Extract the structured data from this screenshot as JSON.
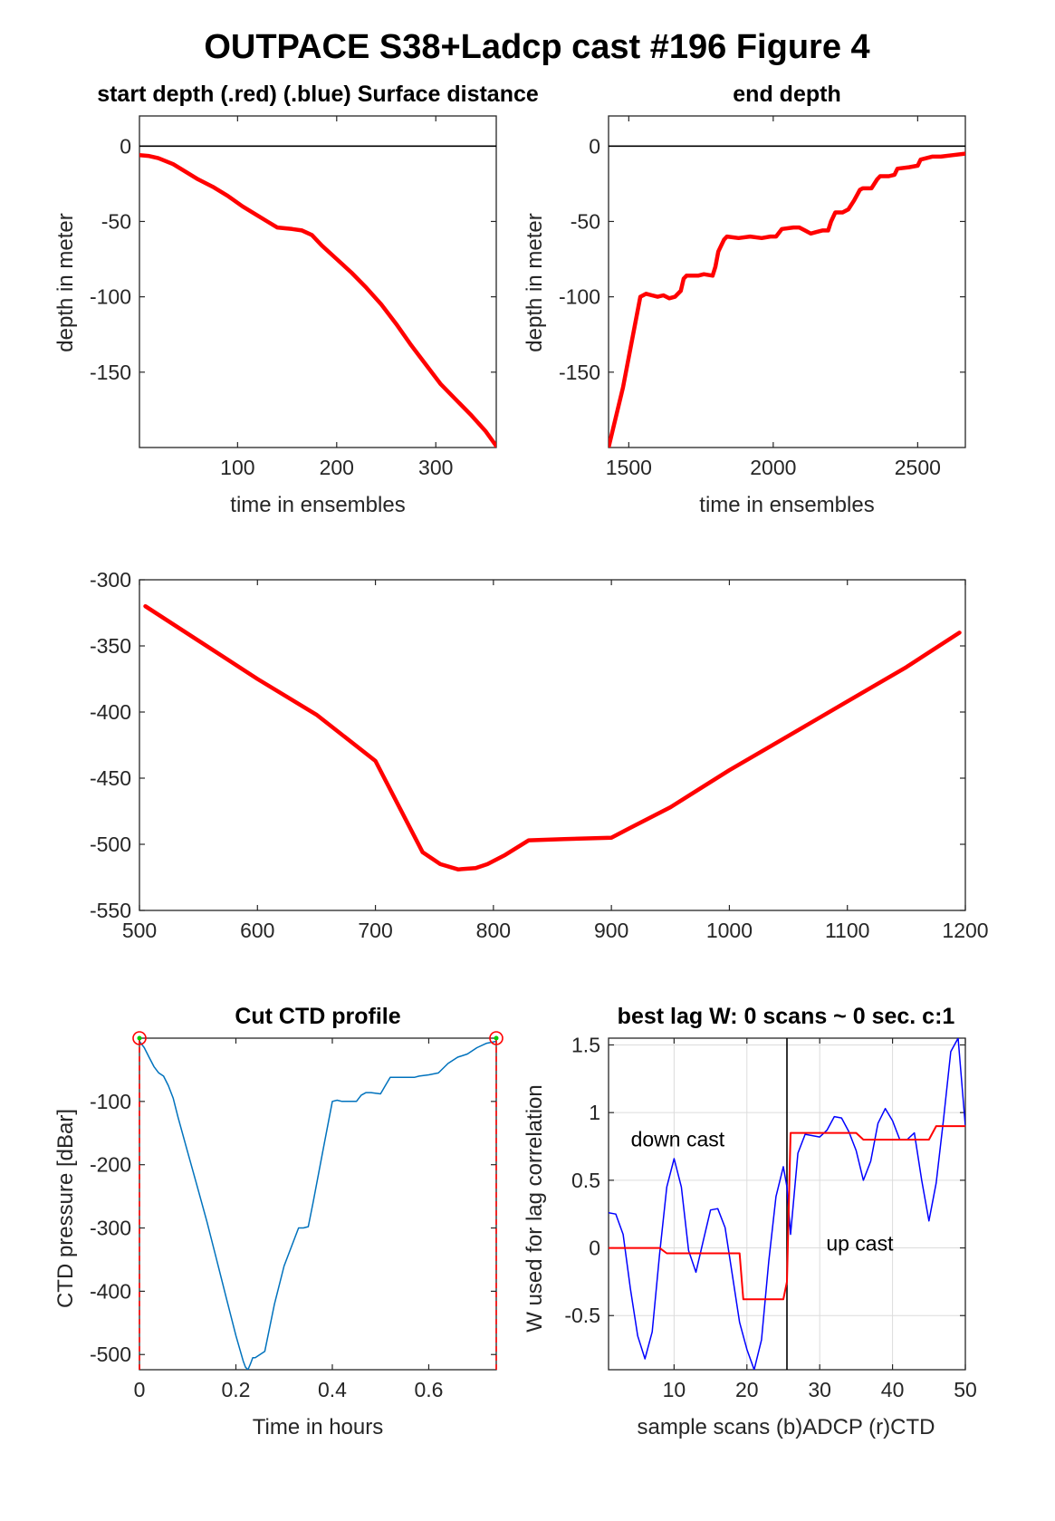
{
  "figure": {
    "title": "OUTPACE S38+Ladcp cast #196   Figure 4"
  },
  "colors": {
    "red": "#ff0000",
    "blue": "#0000ff",
    "ctd": "#0072bd",
    "green": "#00cc00",
    "axis": "#262626"
  },
  "chart_data": [
    {
      "id": "start",
      "type": "line",
      "title": "start depth (.red) (.blue) Surface distance",
      "xlabel": "time in ensembles",
      "ylabel": "depth in meter",
      "xlim": [
        1,
        361
      ],
      "ylim": [
        -200,
        20
      ],
      "xticks": [
        100,
        200,
        300
      ],
      "yticks": [
        0,
        -50,
        -100,
        -150
      ],
      "grid": false,
      "zero_line": true,
      "series": [
        {
          "color": "red",
          "width": 4.5,
          "x": [
            1,
            10,
            20,
            35,
            50,
            60,
            75,
            90,
            105,
            120,
            130,
            140,
            155,
            165,
            175,
            185,
            200,
            215,
            230,
            245,
            260,
            275,
            290,
            305,
            320,
            335,
            350,
            361
          ],
          "y": [
            -6,
            -6.5,
            -8,
            -12,
            -18,
            -22,
            -27,
            -33,
            -40,
            -46,
            -50,
            -54,
            -55,
            -56,
            -59,
            -66,
            -75,
            -84,
            -94,
            -105,
            -118,
            -132,
            -145,
            -158,
            -168,
            -178,
            -189,
            -199
          ]
        }
      ]
    },
    {
      "id": "end",
      "type": "line",
      "title": "end depth",
      "xlabel": "time in ensembles",
      "ylabel": "depth in meter",
      "xlim": [
        1430,
        2665
      ],
      "ylim": [
        -200,
        20
      ],
      "xticks": [
        1500,
        2000,
        2500
      ],
      "yticks": [
        0,
        -50,
        -100,
        -150
      ],
      "grid": false,
      "zero_line": true,
      "series": [
        {
          "color": "red",
          "width": 4.5,
          "x": [
            1430,
            1480,
            1520,
            1540,
            1560,
            1580,
            1600,
            1620,
            1640,
            1660,
            1680,
            1690,
            1700,
            1740,
            1760,
            1790,
            1800,
            1810,
            1830,
            1840,
            1880,
            1920,
            1960,
            1990,
            2010,
            2030,
            2070,
            2090,
            2110,
            2130,
            2150,
            2170,
            2190,
            2200,
            2215,
            2240,
            2260,
            2280,
            2300,
            2310,
            2340,
            2360,
            2370,
            2400,
            2420,
            2430,
            2470,
            2500,
            2510,
            2550,
            2580,
            2620,
            2665
          ],
          "y": [
            -200,
            -160,
            -120,
            -100,
            -98,
            -99,
            -100,
            -99,
            -101,
            -100,
            -96,
            -88,
            -86,
            -86,
            -85,
            -86,
            -80,
            -70,
            -62,
            -60,
            -61,
            -60,
            -61,
            -60,
            -60,
            -55,
            -54,
            -54,
            -56,
            -58,
            -57,
            -56,
            -56,
            -50,
            -44,
            -44,
            -42,
            -36,
            -29,
            -28,
            -28,
            -22,
            -20,
            -20,
            -19,
            -15,
            -14,
            -13,
            -9,
            -7,
            -7,
            -6,
            -5
          ]
        }
      ]
    },
    {
      "id": "surface",
      "type": "line",
      "title": "",
      "xlabel": "",
      "ylabel": "",
      "xlim": [
        500,
        1200
      ],
      "ylim": [
        -550,
        -300
      ],
      "xticks": [
        500,
        600,
        700,
        800,
        900,
        1000,
        1100,
        1200
      ],
      "yticks": [
        -300,
        -350,
        -400,
        -450,
        -500,
        -550
      ],
      "grid": false,
      "series": [
        {
          "color": "red",
          "width": 4.5,
          "x": [
            505,
            550,
            600,
            650,
            700,
            740,
            755,
            770,
            785,
            795,
            810,
            830,
            860,
            900,
            915,
            950,
            1000,
            1050,
            1100,
            1150,
            1195
          ],
          "y": [
            -320,
            -346,
            -375,
            -402,
            -437,
            -506,
            -515,
            -519,
            -518,
            -515,
            -508,
            -497,
            -496,
            -495,
            -488,
            -472,
            -444,
            -418,
            -392,
            -366,
            -340
          ]
        }
      ]
    },
    {
      "id": "ctd",
      "type": "line",
      "title": "Cut CTD profile",
      "xlabel": "Time in hours",
      "ylabel": "CTD pressure [dBar]",
      "xlim": [
        0,
        0.74
      ],
      "ylim": [
        -524,
        0
      ],
      "xticks": [
        0,
        0.2,
        0.4,
        0.6
      ],
      "yticks": [
        -100,
        -200,
        -300,
        -400,
        -500
      ],
      "grid": false,
      "series": [
        {
          "color": "ctd",
          "width": 1.5,
          "x": [
            0,
            0.01,
            0.02,
            0.03,
            0.04,
            0.05,
            0.06,
            0.07,
            0.08,
            0.1,
            0.12,
            0.14,
            0.16,
            0.18,
            0.2,
            0.215,
            0.22,
            0.225,
            0.23,
            0.235,
            0.24,
            0.25,
            0.26,
            0.28,
            0.3,
            0.33,
            0.34,
            0.35,
            0.36,
            0.38,
            0.4,
            0.41,
            0.42,
            0.45,
            0.46,
            0.47,
            0.48,
            0.5,
            0.51,
            0.52,
            0.55,
            0.57,
            0.58,
            0.6,
            0.62,
            0.64,
            0.66,
            0.68,
            0.7,
            0.72,
            0.74
          ],
          "y": [
            -5,
            -15,
            -30,
            -45,
            -55,
            -60,
            -75,
            -95,
            -125,
            -180,
            -235,
            -290,
            -350,
            -410,
            -470,
            -510,
            -520,
            -524,
            -515,
            -505,
            -505,
            -500,
            -495,
            -420,
            -360,
            -300,
            -300,
            -298,
            -260,
            -180,
            -100,
            -98,
            -100,
            -100,
            -90,
            -86,
            -86,
            -88,
            -75,
            -62,
            -62,
            -62,
            -60,
            -58,
            -55,
            -40,
            -30,
            -25,
            -15,
            -8,
            -5
          ]
        }
      ],
      "markers": {
        "left_x": 0,
        "right_x": 0.74,
        "y": 0
      }
    },
    {
      "id": "lag",
      "type": "line",
      "title": "best lag W: 0 scans ~ 0 sec.  c:1",
      "xlabel": "sample scans (b)ADCP (r)CTD",
      "ylabel": "W used for lag correlation",
      "xlim": [
        1,
        50
      ],
      "ylim": [
        -0.9,
        1.55
      ],
      "xticks": [
        10,
        20,
        30,
        40,
        50
      ],
      "yticks": [
        1.5,
        1,
        0.5,
        0,
        -0.5
      ],
      "grid": true,
      "divider_x": 25.5,
      "annotations": [
        {
          "text": "down cast",
          "x": 10.5,
          "y": 0.75
        },
        {
          "text": "up cast",
          "x": 35.5,
          "y": -0.02
        }
      ],
      "series": [
        {
          "color": "blue",
          "width": 1.5,
          "x": [
            1,
            2,
            3,
            4,
            5,
            6,
            7,
            8,
            9,
            10,
            11,
            12,
            13,
            14,
            15,
            16,
            17,
            18,
            19,
            20,
            21,
            22,
            23,
            24,
            25,
            25.5,
            26,
            27,
            28,
            29,
            30,
            31,
            32,
            33,
            34,
            35,
            36,
            37,
            38,
            39,
            40,
            41,
            42,
            43,
            44,
            45,
            46,
            47,
            48,
            49,
            50
          ],
          "y": [
            0.26,
            0.25,
            0.1,
            -0.3,
            -0.65,
            -0.82,
            -0.62,
            -0.05,
            0.45,
            0.66,
            0.45,
            -0.02,
            -0.18,
            0.05,
            0.28,
            0.29,
            0.15,
            -0.2,
            -0.55,
            -0.75,
            -0.9,
            -0.68,
            -0.1,
            0.38,
            0.6,
            0.45,
            0.1,
            0.7,
            0.84,
            0.83,
            0.82,
            0.87,
            0.97,
            0.96,
            0.86,
            0.72,
            0.5,
            0.64,
            0.92,
            1.03,
            0.94,
            0.8,
            0.8,
            0.85,
            0.5,
            0.2,
            0.48,
            0.95,
            1.45,
            1.55,
            0.9
          ]
        },
        {
          "color": "red",
          "width": 2,
          "x": [
            1,
            8,
            9,
            19,
            19.5,
            25,
            25.5,
            26,
            35,
            36,
            45,
            46,
            50
          ],
          "y": [
            0,
            0,
            -0.04,
            -0.04,
            -0.38,
            -0.38,
            -0.25,
            0.85,
            0.85,
            0.8,
            0.8,
            0.9,
            0.9
          ]
        }
      ]
    }
  ]
}
